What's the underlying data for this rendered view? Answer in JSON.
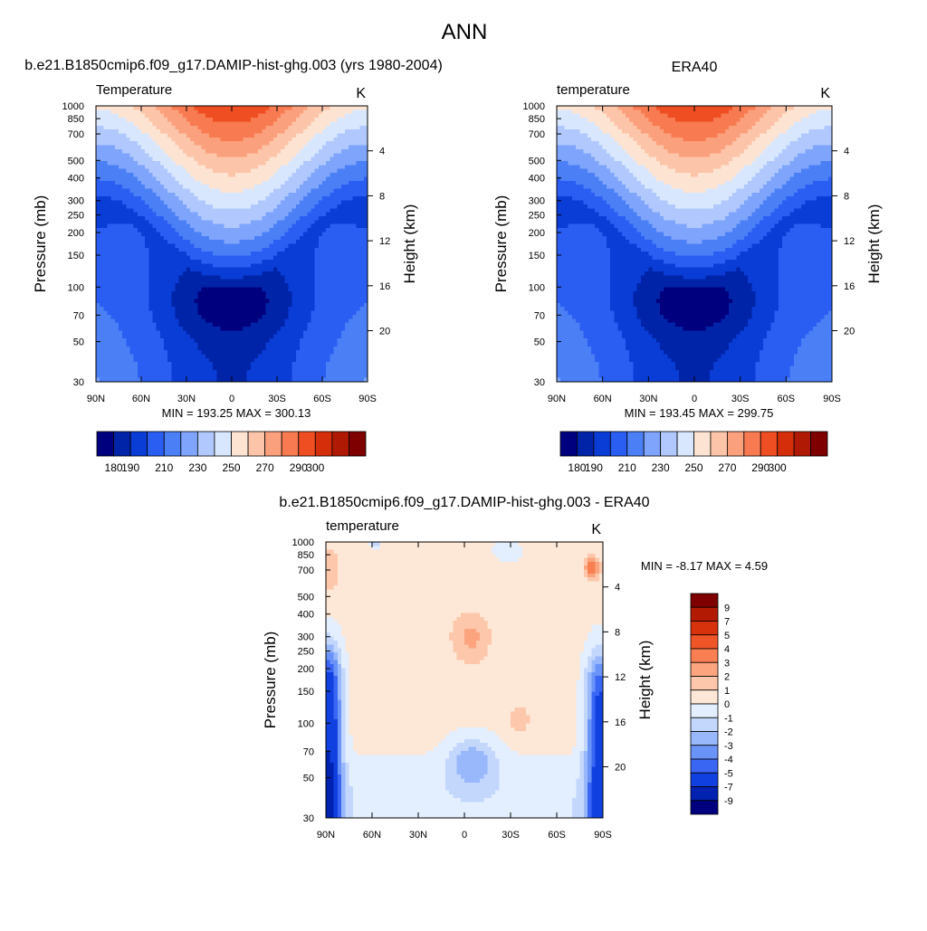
{
  "page_title": "ANN",
  "chart_data": [
    {
      "type": "heatmap",
      "title": "b.e21.B1850cmip6.f09_g17.DAMIP-hist-ghg.003 (yrs 1980-2004)",
      "subtitle_left": "Temperature",
      "units": "K",
      "xlabel": "",
      "ylabel": "Pressure (mb)",
      "ylabel_right": "Height (km)",
      "x_ticks": [
        "90N",
        "60N",
        "30N",
        "0",
        "30S",
        "60S",
        "90S"
      ],
      "x_tick_lat": [
        90,
        60,
        30,
        0,
        -30,
        -60,
        -90
      ],
      "y_ticks": [
        30,
        50,
        70,
        100,
        150,
        200,
        250,
        300,
        400,
        500,
        700,
        850,
        1000
      ],
      "height_ticks": [
        4,
        8,
        12,
        16,
        20
      ],
      "xlim": [
        90,
        -90
      ],
      "ylim": [
        1000,
        30
      ],
      "y_scale": "log",
      "stats": "MIN = 193.25  MAX = 300.13",
      "min": 193.25,
      "max": 300.13,
      "field": "abs",
      "colorbar": {
        "orientation": "horizontal",
        "levels": [
          180,
          190,
          200,
          210,
          220,
          230,
          240,
          250,
          260,
          270,
          280,
          290,
          300
        ],
        "labels": [
          "180",
          "190",
          "210",
          "230",
          "250",
          "270",
          "290",
          "300"
        ],
        "colors": [
          "#00007f",
          "#0024a8",
          "#0a3cd6",
          "#2a5ef2",
          "#4a7ff6",
          "#7ea4fb",
          "#b0c8fd",
          "#d9e7fe",
          "#fde4d2",
          "#fcc4a8",
          "#fba07c",
          "#f87a50",
          "#ee4e22",
          "#d42e0a",
          "#b01a04",
          "#7f0000"
        ]
      }
    },
    {
      "type": "heatmap",
      "title": "ERA40",
      "subtitle_left": "temperature",
      "units": "K",
      "xlabel": "",
      "ylabel": "Pressure (mb)",
      "ylabel_right": "Height (km)",
      "x_ticks": [
        "90N",
        "60N",
        "30N",
        "0",
        "30S",
        "60S",
        "90S"
      ],
      "x_tick_lat": [
        90,
        60,
        30,
        0,
        -30,
        -60,
        -90
      ],
      "y_ticks": [
        30,
        50,
        70,
        100,
        150,
        200,
        250,
        300,
        400,
        500,
        700,
        850,
        1000
      ],
      "height_ticks": [
        4,
        8,
        12,
        16,
        20
      ],
      "xlim": [
        90,
        -90
      ],
      "ylim": [
        1000,
        30
      ],
      "y_scale": "log",
      "stats": "MIN = 193.45  MAX = 299.75",
      "min": 193.45,
      "max": 299.75,
      "field": "abs",
      "colorbar": {
        "orientation": "horizontal",
        "levels": [
          180,
          190,
          200,
          210,
          220,
          230,
          240,
          250,
          260,
          270,
          280,
          290,
          300
        ],
        "labels": [
          "180",
          "190",
          "210",
          "230",
          "250",
          "270",
          "290",
          "300"
        ],
        "colors": [
          "#00007f",
          "#0024a8",
          "#0a3cd6",
          "#2a5ef2",
          "#4a7ff6",
          "#7ea4fb",
          "#b0c8fd",
          "#d9e7fe",
          "#fde4d2",
          "#fcc4a8",
          "#fba07c",
          "#f87a50",
          "#ee4e22",
          "#d42e0a",
          "#b01a04",
          "#7f0000"
        ]
      }
    },
    {
      "type": "heatmap",
      "title": "b.e21.B1850cmip6.f09_g17.DAMIP-hist-ghg.003 - ERA40",
      "subtitle_left": "temperature",
      "units": "K",
      "xlabel": "",
      "ylabel": "Pressure (mb)",
      "ylabel_right": "Height (km)",
      "x_ticks": [
        "90N",
        "60N",
        "30N",
        "0",
        "30S",
        "60S",
        "90S"
      ],
      "x_tick_lat": [
        90,
        60,
        30,
        0,
        -30,
        -60,
        -90
      ],
      "y_ticks": [
        30,
        50,
        70,
        100,
        150,
        200,
        250,
        300,
        400,
        500,
        700,
        850,
        1000
      ],
      "height_ticks": [
        4,
        8,
        12,
        16,
        20
      ],
      "xlim": [
        90,
        -90
      ],
      "ylim": [
        1000,
        30
      ],
      "y_scale": "log",
      "stats": "MIN =  -8.17  MAX =   4.59",
      "min": -8.17,
      "max": 4.59,
      "field": "diff",
      "colorbar": {
        "orientation": "vertical",
        "levels": [
          -9,
          -7,
          -5,
          -4,
          -3,
          -2,
          -1,
          0,
          1,
          2,
          3,
          4,
          5,
          7,
          9
        ],
        "labels": [
          "9",
          "7",
          "5",
          "4",
          "3",
          "2",
          "1",
          "0",
          "-1",
          "-2",
          "-3",
          "-4",
          "-5",
          "-7",
          "-9"
        ],
        "colors": [
          "#00007f",
          "#0022b0",
          "#1040e0",
          "#3a66f4",
          "#6a93f8",
          "#98b8fb",
          "#c3d7fd",
          "#e3eefe",
          "#fde7d6",
          "#fcc7aa",
          "#fba47e",
          "#f97f52",
          "#f05528",
          "#d8320c",
          "#b21a04",
          "#7f0000"
        ]
      }
    }
  ]
}
